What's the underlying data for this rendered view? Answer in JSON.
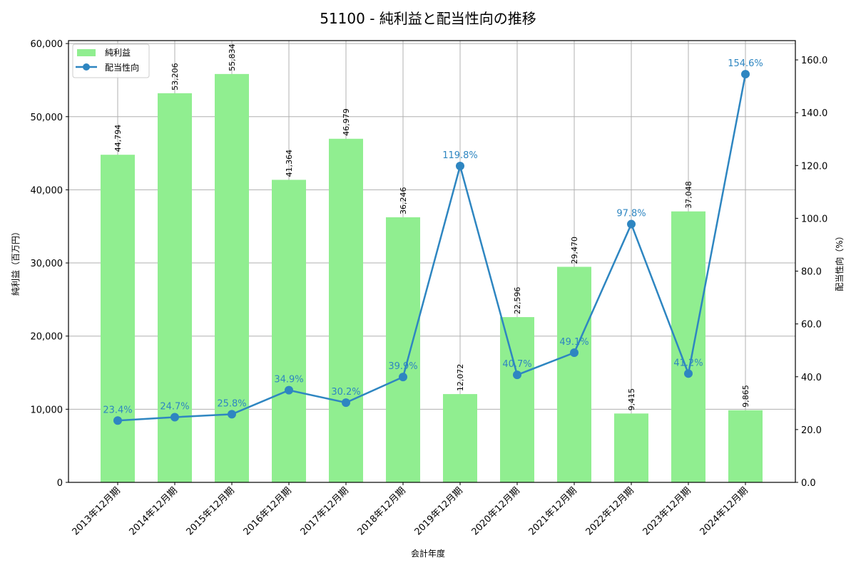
{
  "chart_data": {
    "type": "bar+line",
    "title": "51100 - 純利益と配当性向の推移",
    "xlabel": "会計年度",
    "ylabel": "純利益（百万円）",
    "y2label": "配当性向（%）",
    "categories": [
      "2013年12月期",
      "2014年12月期",
      "2015年12月期",
      "2016年12月期",
      "2017年12月期",
      "2018年12月期",
      "2019年12月期",
      "2020年12月期",
      "2021年12月期",
      "2022年12月期",
      "2023年12月期",
      "2024年12月期"
    ],
    "series": [
      {
        "name": "純利益",
        "type": "bar",
        "axis": "left",
        "color": "#90ee90",
        "values": [
          44794,
          53206,
          55834,
          41364,
          46979,
          36246,
          12072,
          22596,
          29470,
          9415,
          37048,
          9865
        ],
        "labels": [
          "44,794",
          "53,206",
          "55,834",
          "41,364",
          "46,979",
          "36,246",
          "12,072",
          "22,596",
          "29,470",
          "9,415",
          "37,048",
          "9,865"
        ]
      },
      {
        "name": "配当性向",
        "type": "line",
        "axis": "right",
        "color": "#2e86c1",
        "values": [
          23.4,
          24.7,
          25.8,
          34.9,
          30.2,
          39.9,
          119.8,
          40.7,
          49.1,
          97.8,
          41.2,
          154.6
        ],
        "labels": [
          "23.4%",
          "24.7%",
          "25.8%",
          "34.9%",
          "30.2%",
          "39.9%",
          "119.8%",
          "40.7%",
          "49.1%",
          "97.8%",
          "41.2%",
          "154.6%"
        ]
      }
    ],
    "ylim": [
      0,
      60400
    ],
    "y2lim": [
      0,
      167.3
    ],
    "yticks": [
      "0",
      "10,000",
      "20,000",
      "30,000",
      "40,000",
      "50,000",
      "60,000"
    ],
    "y2ticks": [
      "0.0",
      "20.0",
      "40.0",
      "60.0",
      "80.0",
      "100.0",
      "120.0",
      "140.0",
      "160.0"
    ],
    "grid": true,
    "legend_position": "upper left"
  }
}
